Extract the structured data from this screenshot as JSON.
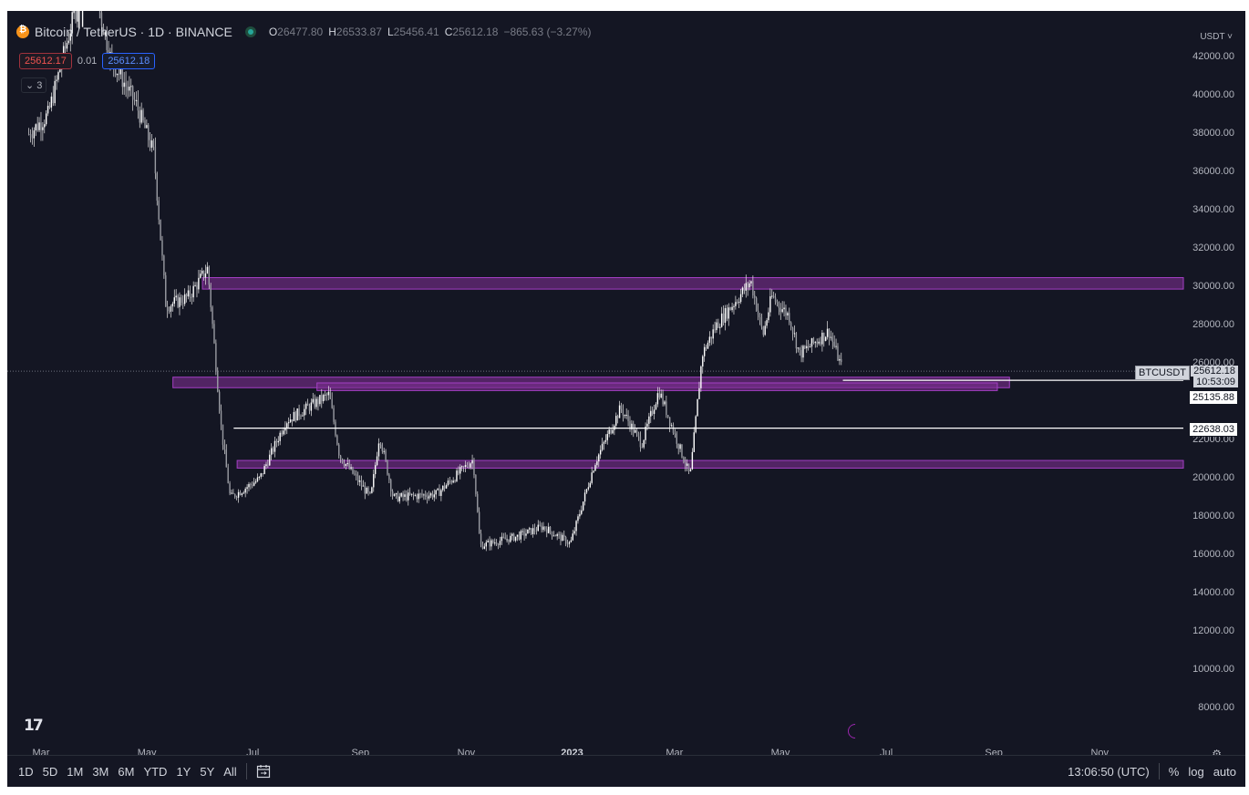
{
  "header": {
    "symbol": "Bitcoin / TetherUS · 1D · BINANCE",
    "open_key": "O",
    "open": "26477.80",
    "high_key": "H",
    "high": "26533.87",
    "low_key": "L",
    "low": "25456.41",
    "close_key": "C",
    "close": "25612.18",
    "change": "−865.63 (−3.27%)"
  },
  "quote": {
    "sell": "25612.17",
    "spread": "0.01",
    "buy": "25612.18"
  },
  "indicators_toggle": "⌄ 3",
  "currency": "USDT ˅",
  "price_tags": {
    "symbol": "BTCUSDT",
    "last": "25612.18",
    "timer": "10:53:09",
    "level1": "25135.88",
    "level2": "22638.03"
  },
  "bottom_bar": {
    "timeframes": [
      "1D",
      "5D",
      "1M",
      "3M",
      "6M",
      "YTD",
      "1Y",
      "5Y",
      "All"
    ],
    "clock": "13:06:50 (UTC)",
    "percent": "%",
    "log": "log",
    "auto": "auto"
  },
  "colors": {
    "background": "#141623",
    "zone_fill": "#7b2f8f",
    "zone_border": "#a43fc4",
    "candle": "#e6e6e6",
    "line": "#ffffff"
  },
  "chart_data": {
    "type": "candlestick",
    "symbol": "BTCUSDT",
    "interval": "1D",
    "x_ticks": [
      "Mar",
      "May",
      "Jul",
      "Sep",
      "Nov",
      "2023",
      "Mar",
      "May",
      "Jul",
      "Sep",
      "Nov"
    ],
    "y_ticks": [
      8000,
      10000,
      12000,
      14000,
      16000,
      18000,
      20000,
      22000,
      24000,
      26000,
      28000,
      30000,
      32000,
      34000,
      36000,
      38000,
      40000,
      42000
    ],
    "ylim": [
      7000,
      42800
    ],
    "price_path": [
      {
        "t": "2022-02-22",
        "p": 38000
      },
      {
        "t": "2022-03-05",
        "p": 39000
      },
      {
        "t": "2022-03-28",
        "p": 47000
      },
      {
        "t": "2022-04-10",
        "p": 42000
      },
      {
        "t": "2022-04-25",
        "p": 39500
      },
      {
        "t": "2022-05-05",
        "p": 37000
      },
      {
        "t": "2022-05-12",
        "p": 29000
      },
      {
        "t": "2022-05-25",
        "p": 29500
      },
      {
        "t": "2022-06-05",
        "p": 31000
      },
      {
        "t": "2022-06-13",
        "p": 22500
      },
      {
        "t": "2022-06-18",
        "p": 19000
      },
      {
        "t": "2022-07-05",
        "p": 20000
      },
      {
        "t": "2022-07-20",
        "p": 23000
      },
      {
        "t": "2022-08-14",
        "p": 24400
      },
      {
        "t": "2022-08-20",
        "p": 21200
      },
      {
        "t": "2022-09-07",
        "p": 19000
      },
      {
        "t": "2022-09-12",
        "p": 22300
      },
      {
        "t": "2022-09-20",
        "p": 19000
      },
      {
        "t": "2022-10-15",
        "p": 19200
      },
      {
        "t": "2022-11-05",
        "p": 21000
      },
      {
        "t": "2022-11-09",
        "p": 16500
      },
      {
        "t": "2022-12-01",
        "p": 17000
      },
      {
        "t": "2022-12-15",
        "p": 17500
      },
      {
        "t": "2022-12-31",
        "p": 16600
      },
      {
        "t": "2023-01-14",
        "p": 20800
      },
      {
        "t": "2023-01-29",
        "p": 23700
      },
      {
        "t": "2023-02-10",
        "p": 21800
      },
      {
        "t": "2023-02-20",
        "p": 24600
      },
      {
        "t": "2023-03-10",
        "p": 20100
      },
      {
        "t": "2023-03-17",
        "p": 26500
      },
      {
        "t": "2023-03-25",
        "p": 28000
      },
      {
        "t": "2023-04-14",
        "p": 30300
      },
      {
        "t": "2023-04-21",
        "p": 27500
      },
      {
        "t": "2023-04-26",
        "p": 29500
      },
      {
        "t": "2023-05-06",
        "p": 28500
      },
      {
        "t": "2023-05-12",
        "p": 26500
      },
      {
        "t": "2023-05-29",
        "p": 27700
      },
      {
        "t": "2023-06-06",
        "p": 25612
      }
    ],
    "zones": [
      {
        "from": "2022-06-02",
        "to": "2023-12-31",
        "low": 29900,
        "high": 30500
      },
      {
        "from": "2022-05-16",
        "to": "2023-09-10",
        "low": 24750,
        "high": 25300
      },
      {
        "from": "2022-08-07",
        "to": "2023-09-03",
        "low": 24600,
        "high": 25000
      },
      {
        "from": "2022-06-22",
        "to": "2023-12-31",
        "low": 20550,
        "high": 20950
      }
    ],
    "horizontal_lines": [
      {
        "from": "2023-06-06",
        "value": 25135.88
      },
      {
        "from": "2022-06-20",
        "value": 22638.03
      }
    ],
    "last_price": 25612.18
  }
}
